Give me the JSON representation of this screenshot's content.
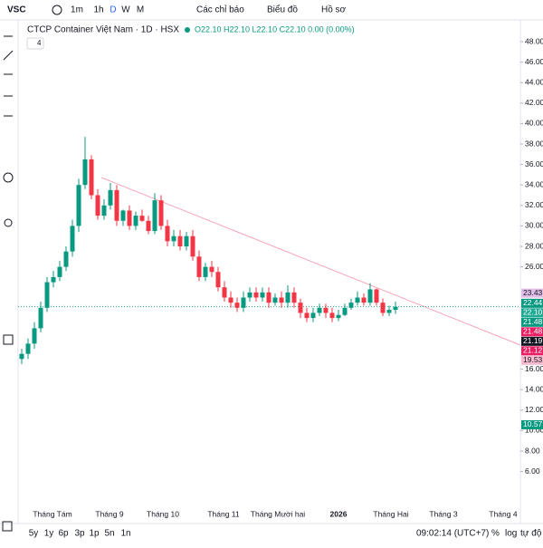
{
  "header": {
    "symbol": "VSC",
    "intervals": [
      "1m",
      "1h",
      "D",
      "W",
      "M"
    ],
    "indicators": "Các chỉ báo",
    "chart_menu": "Biểu đồ",
    "profile": "Hồ sơ",
    "name": "CTCP Container Việt Nam · 1D · HSX",
    "ohlc": "O22.10 H22.10 L22.10 C22.10 0.00 (0.00%)",
    "collapse": "4"
  },
  "chart_data": {
    "type": "candlestick",
    "up_color": "#089981",
    "down_color": "#f23645",
    "ylim": [
      4,
      49
    ],
    "yticks": [
      {
        "value": 48,
        "label": "48.00"
      },
      {
        "value": 46,
        "label": "46.00"
      },
      {
        "value": 44,
        "label": "44.00"
      },
      {
        "value": 42,
        "label": "42.00"
      },
      {
        "value": 40,
        "label": "40.00"
      },
      {
        "value": 38,
        "label": "38.00"
      },
      {
        "value": 36,
        "label": "36.00"
      },
      {
        "value": 34,
        "label": "34.00"
      },
      {
        "value": 32,
        "label": "32.00"
      },
      {
        "value": 30,
        "label": "30.00"
      },
      {
        "value": 28,
        "label": "28.00"
      },
      {
        "value": 26,
        "label": "26.00"
      },
      {
        "value": 16,
        "label": "16.00"
      },
      {
        "value": 14,
        "label": "14.00"
      },
      {
        "value": 12,
        "label": "12.00"
      },
      {
        "value": 10,
        "label": "10.00"
      },
      {
        "value": 8,
        "label": "8.00"
      },
      {
        "value": 6,
        "label": "6.00"
      }
    ],
    "xlabels": [
      "Tháng Tám",
      "Tháng 9",
      "Tháng 10",
      "Tháng 11",
      "Tháng Mười hai",
      "2026",
      "Tháng Hai",
      "Tháng 3",
      "Tháng 4"
    ],
    "open": [
      17,
      17.5,
      18.5,
      20,
      22,
      24.5,
      25,
      26,
      27.5,
      30,
      34,
      36.5,
      33,
      31,
      32,
      33.5,
      30.5,
      31.5,
      30,
      31,
      30.5,
      29.5,
      32.5,
      30,
      28.5,
      29,
      28,
      29,
      27,
      25,
      26,
      25.5,
      24,
      23,
      22.5,
      22,
      23,
      23.5,
      23,
      23.5,
      22.5,
      23,
      22.5,
      23.5,
      22.5,
      21.5,
      21,
      21.5,
      22,
      21.5,
      21,
      21.3,
      22,
      22.5,
      23,
      22.5,
      23.8,
      22.5,
      21.5,
      21.8
    ],
    "high": [
      18,
      19,
      20.6,
      22.6,
      25,
      25.6,
      26.6,
      28,
      30.6,
      34.6,
      38.7,
      36.9,
      33.6,
      32.6,
      34.2,
      34,
      31.6,
      32,
      31.4,
      31.6,
      31,
      33.2,
      33,
      30.6,
      29.6,
      29.6,
      29.4,
      29.6,
      27.6,
      26.4,
      26.6,
      26,
      24.6,
      23.6,
      23,
      23.6,
      24,
      24,
      24,
      24,
      23.4,
      23.6,
      24.2,
      24,
      22.9,
      22,
      22,
      22.4,
      22.4,
      22,
      21.8,
      22.4,
      22.9,
      23.6,
      23.4,
      24.4,
      23.9,
      22.9,
      22.2,
      22.6
    ],
    "low": [
      16.5,
      17,
      18,
      19.6,
      21.6,
      24,
      24.6,
      25.6,
      27,
      29.4,
      33.6,
      32.6,
      30.6,
      30.6,
      31.6,
      30,
      30,
      29.6,
      29.6,
      30.4,
      29.2,
      29.2,
      29.6,
      28,
      28,
      27.6,
      27.6,
      26.6,
      24.6,
      24.6,
      25,
      23.6,
      22.6,
      22,
      21.6,
      21.6,
      22.6,
      22.6,
      22.6,
      22,
      22.2,
      22,
      22,
      22,
      21,
      20.6,
      20.6,
      21.2,
      21,
      20.6,
      20.7,
      21.2,
      21.8,
      22.2,
      22.2,
      22.2,
      22.2,
      21.2,
      21.2,
      21.4
    ],
    "close": [
      17.5,
      18.5,
      20,
      22,
      24.5,
      25,
      26,
      27.5,
      30,
      34,
      36.5,
      33,
      31,
      32,
      33.5,
      30.5,
      31.5,
      30,
      31,
      30.5,
      29.5,
      32.5,
      30,
      28.5,
      29,
      28,
      29,
      27,
      25,
      26,
      25.5,
      24,
      23,
      22.5,
      22,
      23,
      23.5,
      23,
      23.5,
      22.5,
      23,
      22.5,
      23.5,
      22.5,
      21.5,
      21,
      21.5,
      22,
      21.5,
      21,
      21.3,
      22,
      22.5,
      23,
      22.5,
      23.8,
      22.5,
      21.5,
      21.8,
      22.1
    ],
    "last_price": 22.1,
    "badges": [
      {
        "value": 23.43,
        "label": "23.43",
        "color": "#e1bee7"
      },
      {
        "value": 22.44,
        "label": "22.44",
        "color": "#089981"
      },
      {
        "value": 22.1,
        "label": "22.10",
        "color": "#22ab94"
      },
      {
        "value": 21.48,
        "label": "21.48",
        "color": "#089981"
      },
      {
        "value": 21.48,
        "label": "21.48",
        "color": "#e91e63"
      },
      {
        "value": 21.19,
        "label": "21.19",
        "color": "#131722"
      },
      {
        "value": 21.12,
        "label": "21.12",
        "color": "#e91e63"
      },
      {
        "value": 19.53,
        "label": "19.53",
        "color": "#f8bbd0"
      },
      {
        "value": 10.57,
        "label": "10.57",
        "color": "#089981"
      }
    ]
  },
  "footer": {
    "ranges": [
      "5y",
      "1y",
      "6p",
      "3p",
      "1p",
      "5n",
      "1n"
    ],
    "time": "09:02:14 (UTC+7)",
    "percent": "%",
    "log": "log",
    "auto": "tự độ"
  }
}
